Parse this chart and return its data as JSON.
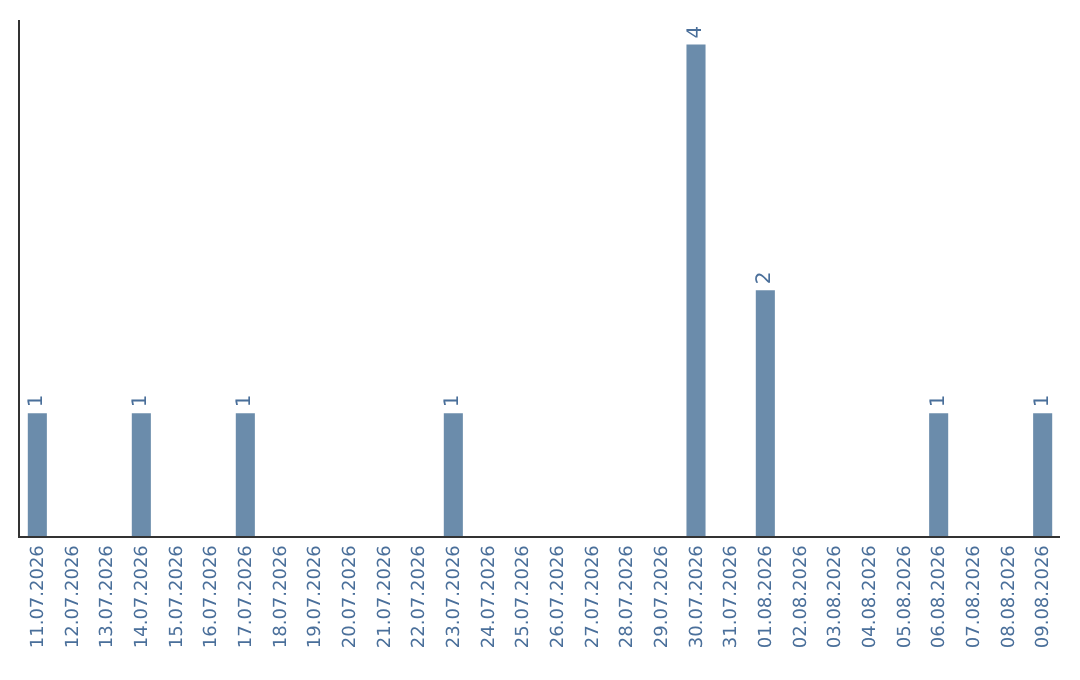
{
  "chart_data": {
    "type": "bar",
    "categories": [
      "11.07.2026",
      "12.07.2026",
      "13.07.2026",
      "14.07.2026",
      "15.07.2026",
      "16.07.2026",
      "17.07.2026",
      "18.07.2026",
      "19.07.2026",
      "20.07.2026",
      "21.07.2026",
      "22.07.2026",
      "23.07.2026",
      "24.07.2026",
      "25.07.2026",
      "26.07.2026",
      "27.07.2026",
      "28.07.2026",
      "29.07.2026",
      "30.07.2026",
      "31.07.2026",
      "01.08.2026",
      "02.08.2026",
      "03.08.2026",
      "04.08.2026",
      "05.08.2026",
      "06.08.2026",
      "07.08.2026",
      "08.08.2026",
      "09.08.2026"
    ],
    "values": [
      1,
      0,
      0,
      1,
      0,
      0,
      1,
      0,
      0,
      0,
      0,
      0,
      1,
      0,
      0,
      0,
      0,
      0,
      0,
      4,
      0,
      2,
      0,
      0,
      0,
      0,
      1,
      0,
      0,
      1
    ],
    "value_labels": [
      "1",
      null,
      null,
      "1",
      null,
      null,
      "1",
      null,
      null,
      null,
      null,
      null,
      "1",
      null,
      null,
      null,
      null,
      null,
      null,
      "4",
      null,
      "2",
      null,
      null,
      null,
      null,
      "1",
      null,
      null,
      "1"
    ],
    "color": "#6b8cab",
    "ylim": [
      0,
      4.2
    ],
    "tick_labels": "x"
  }
}
